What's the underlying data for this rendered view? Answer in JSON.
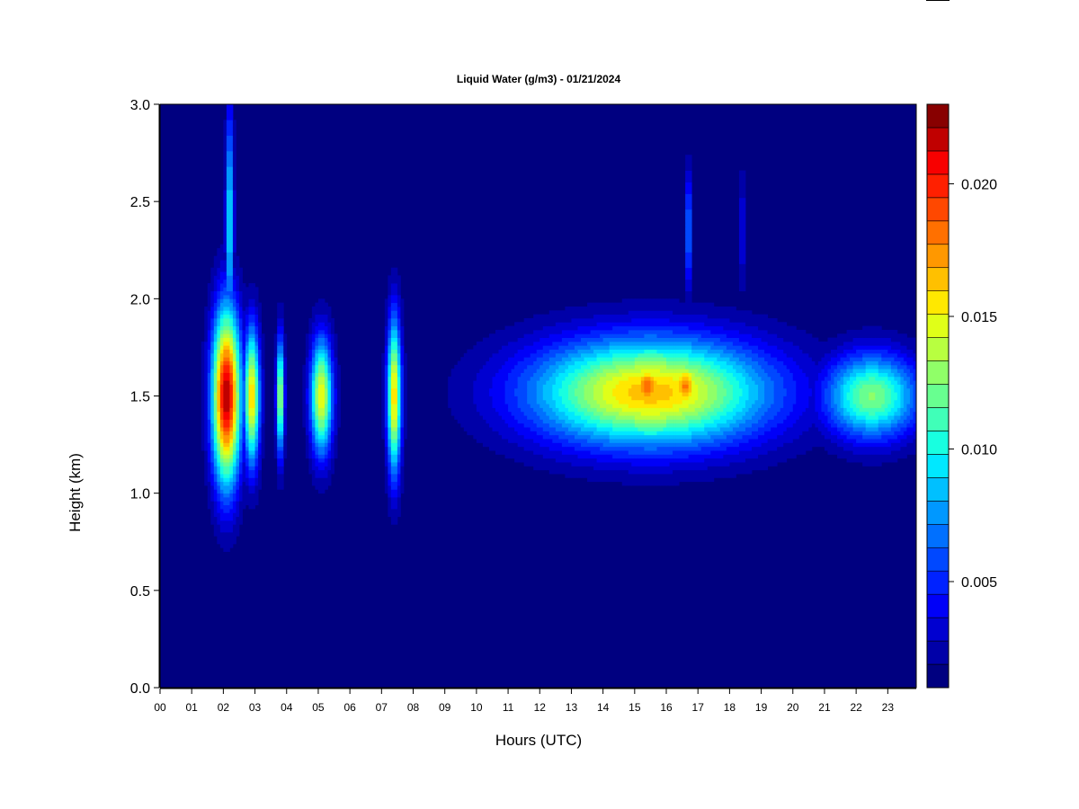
{
  "chart_data": {
    "type": "heatmap",
    "title": "Liquid Water (g/m3) - 01/21/2024",
    "xlabel": "Hours (UTC)",
    "ylabel": "Height (km)",
    "xlim": [
      0,
      23.9
    ],
    "ylim": [
      0,
      3.0
    ],
    "x_ticks": [
      "00",
      "01",
      "02",
      "03",
      "04",
      "05",
      "06",
      "07",
      "08",
      "09",
      "10",
      "11",
      "12",
      "13",
      "14",
      "15",
      "16",
      "17",
      "18",
      "19",
      "20",
      "21",
      "22",
      "23"
    ],
    "y_ticks": [
      "0.0",
      "0.5",
      "1.0",
      "1.5",
      "2.0",
      "2.5",
      "3.0"
    ],
    "colorbar": {
      "min": 0.001,
      "max": 0.023,
      "ticks": [
        "0.005",
        "0.010",
        "0.015",
        "0.020"
      ],
      "tick_values": [
        0.005,
        0.01,
        0.015,
        0.02
      ],
      "colors": [
        "#000080",
        "#0000a8",
        "#0000d0",
        "#0000f8",
        "#0022ff",
        "#0048ff",
        "#0070ff",
        "#0098ff",
        "#00c0ff",
        "#00e8ff",
        "#18ffe0",
        "#40ffb8",
        "#68ff90",
        "#90ff68",
        "#b8ff40",
        "#e0ff18",
        "#ffe800",
        "#ffc000",
        "#ff9800",
        "#ff7000",
        "#ff4800",
        "#ff2000",
        "#f80000",
        "#c00000",
        "#880000"
      ]
    },
    "background_value": 0.001,
    "features": [
      {
        "name": "cloud at 02 UTC",
        "x": 2.1,
        "y": 1.5,
        "x_width": 0.45,
        "y_width": 0.45,
        "peak": 0.022
      },
      {
        "name": "upper plume at 02 UTC",
        "x": 2.2,
        "y": 2.4,
        "x_width": 0.12,
        "y_width": 0.6,
        "peak": 0.01
      },
      {
        "name": "cloud at 03 UTC",
        "x": 2.9,
        "y": 1.5,
        "x_width": 0.25,
        "y_width": 0.35,
        "peak": 0.016
      },
      {
        "name": "cloud at 04 UTC",
        "x": 3.8,
        "y": 1.5,
        "x_width": 0.12,
        "y_width": 0.3,
        "peak": 0.014
      },
      {
        "name": "cloud at 05 UTC",
        "x": 5.1,
        "y": 1.5,
        "x_width": 0.35,
        "y_width": 0.3,
        "peak": 0.015
      },
      {
        "name": "cloud at 07 UTC",
        "x": 7.4,
        "y": 1.5,
        "x_width": 0.22,
        "y_width": 0.4,
        "peak": 0.016
      },
      {
        "name": "cloud layer 10-21 UTC",
        "x": 15.5,
        "y": 1.52,
        "x_width": 3.8,
        "y_width": 0.28,
        "peak": 0.0165
      },
      {
        "name": "peak at 15 UTC",
        "x": 15.4,
        "y": 1.55,
        "x_width": 0.6,
        "y_width": 0.15,
        "peak": 0.0185
      },
      {
        "name": "peak at 16-17 UTC",
        "x": 16.6,
        "y": 1.55,
        "x_width": 0.5,
        "y_width": 0.15,
        "peak": 0.018
      },
      {
        "name": "cloud layer 21-24 UTC",
        "x": 22.5,
        "y": 1.5,
        "x_width": 1.5,
        "y_width": 0.22,
        "peak": 0.0125
      },
      {
        "name": "upper streak at 17 UTC",
        "x": 16.7,
        "y": 2.35,
        "x_width": 0.08,
        "y_width": 0.3,
        "peak": 0.0085
      },
      {
        "name": "upper streak at 18.5 UTC",
        "x": 18.4,
        "y": 2.35,
        "x_width": 0.06,
        "y_width": 0.3,
        "peak": 0.006
      }
    ]
  }
}
